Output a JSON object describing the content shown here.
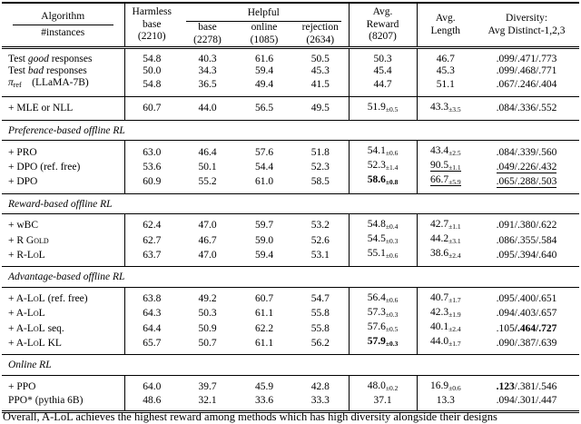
{
  "table": {
    "header": {
      "algorithm": "Algorithm",
      "instances": "#instances",
      "harmless": {
        "l1": "Harmless",
        "l2": "base",
        "l3": "(2210)"
      },
      "helpful": {
        "title": "Helpful",
        "subs": [
          {
            "l1": "base",
            "l2": "(2278)"
          },
          {
            "l1": "online",
            "l2": "(1085)"
          },
          {
            "l1": "rejection",
            "l2": "(2634)"
          }
        ]
      },
      "reward": {
        "l1": "Avg.",
        "l2": "Reward",
        "l3": "(8207)"
      },
      "length": {
        "l1": "Avg.",
        "l2": "Length"
      },
      "diversity": {
        "l1": "Diversity:",
        "l2": "Avg Distinct-1,2,3"
      }
    },
    "groups": [
      {
        "title": null,
        "rows": [
          {
            "label": [
              {
                "t": "Test "
              },
              {
                "t": "good",
                "i": true
              },
              {
                "t": " responses"
              }
            ],
            "vals": [
              "54.8",
              "40.3",
              "61.6",
              "50.5"
            ],
            "reward": {
              "v": "50.3"
            },
            "length": {
              "v": "46.7"
            },
            "div": {
              "p": [
                ".099",
                ".471",
                ".773"
              ]
            }
          },
          {
            "label": [
              {
                "t": "Test "
              },
              {
                "t": "bad",
                "i": true
              },
              {
                "t": " responses"
              }
            ],
            "vals": [
              "50.0",
              "34.3",
              "59.4",
              "45.3"
            ],
            "reward": {
              "v": "45.4"
            },
            "length": {
              "v": "45.3"
            },
            "div": {
              "p": [
                ".099",
                ".468",
                ".771"
              ]
            }
          },
          {
            "label": [
              {
                "t": "π",
                "i": true
              },
              {
                "t": "ref",
                "sub": true
              },
              {
                "t": "  (LLaMA-7B)"
              }
            ],
            "vals": [
              "54.8",
              "36.5",
              "49.4",
              "41.5"
            ],
            "reward": {
              "v": "44.7"
            },
            "length": {
              "v": "51.1"
            },
            "div": {
              "p": [
                ".067",
                ".246",
                ".404"
              ]
            }
          }
        ]
      },
      {
        "title": null,
        "rows": [
          {
            "label": [
              {
                "t": "+ MLE or NLL"
              }
            ],
            "vals": [
              "60.7",
              "44.0",
              "56.5",
              "49.5"
            ],
            "reward": {
              "v": "51.9",
              "s": "0.5"
            },
            "length": {
              "v": "43.3",
              "s": "3.5"
            },
            "div": {
              "p": [
                ".084",
                ".336",
                ".552"
              ]
            }
          }
        ]
      },
      {
        "title": "Preference-based offline RL",
        "rows": [
          {
            "label": [
              {
                "t": "+ PRO"
              }
            ],
            "vals": [
              "63.0",
              "46.4",
              "57.6",
              "51.8"
            ],
            "reward": {
              "v": "54.1",
              "s": "0.6"
            },
            "length": {
              "v": "43.4",
              "s": "2.5"
            },
            "div": {
              "p": [
                ".084",
                ".339",
                ".560"
              ]
            }
          },
          {
            "label": [
              {
                "t": "+ DPO (ref. free)"
              }
            ],
            "vals": [
              "53.6",
              "50.1",
              "54.4",
              "52.3"
            ],
            "reward": {
              "v": "52.3",
              "s": "1.4"
            },
            "length": {
              "v": "90.5",
              "s": "1.1",
              "u": true
            },
            "div": {
              "p": [
                ".049",
                ".226",
                ".432"
              ],
              "u": true
            }
          },
          {
            "label": [
              {
                "t": "+ DPO"
              }
            ],
            "vals": [
              "60.9",
              "55.2",
              "61.0",
              "58.5"
            ],
            "reward": {
              "v": "58.6",
              "s": "0.8",
              "b": true
            },
            "length": {
              "v": "66.7",
              "s": "5.9",
              "u": true
            },
            "div": {
              "p": [
                ".065",
                ".288",
                ".503"
              ],
              "u": true
            }
          }
        ]
      },
      {
        "title": "Reward-based offline RL",
        "rows": [
          {
            "label": [
              {
                "t": "+ wBC"
              }
            ],
            "vals": [
              "62.4",
              "47.0",
              "59.7",
              "53.2"
            ],
            "reward": {
              "v": "54.8",
              "s": "0.4"
            },
            "length": {
              "v": "42.7",
              "s": "1.1"
            },
            "div": {
              "p": [
                ".091",
                ".380",
                ".622"
              ]
            }
          },
          {
            "label": [
              {
                "t": "+ R "
              },
              {
                "t": "Gold",
                "sc": true
              }
            ],
            "vals": [
              "62.7",
              "46.7",
              "59.0",
              "52.6"
            ],
            "reward": {
              "v": "54.5",
              "s": "0.3"
            },
            "length": {
              "v": "44.2",
              "s": "3.1"
            },
            "div": {
              "p": [
                ".086",
                ".355",
                ".584"
              ]
            }
          },
          {
            "label": [
              {
                "t": "+ R-"
              },
              {
                "t": "LoL",
                "sc": true
              }
            ],
            "vals": [
              "63.7",
              "47.0",
              "59.4",
              "53.1"
            ],
            "reward": {
              "v": "55.1",
              "s": "0.6"
            },
            "length": {
              "v": "38.6",
              "s": "2.4"
            },
            "div": {
              "p": [
                ".095",
                ".394",
                ".640"
              ]
            }
          }
        ]
      },
      {
        "title": "Advantage-based offline RL",
        "rows": [
          {
            "label": [
              {
                "t": "+ A-"
              },
              {
                "t": "LoL",
                "sc": true
              },
              {
                "t": " (ref. free)"
              }
            ],
            "vals": [
              "63.8",
              "49.2",
              "60.7",
              "54.7"
            ],
            "reward": {
              "v": "56.4",
              "s": "0.6"
            },
            "length": {
              "v": "40.7",
              "s": "1.7"
            },
            "div": {
              "p": [
                ".095",
                ".400",
                ".651"
              ]
            }
          },
          {
            "label": [
              {
                "t": "+ A-"
              },
              {
                "t": "LoL",
                "sc": true
              }
            ],
            "vals": [
              "64.3",
              "50.3",
              "61.1",
              "55.8"
            ],
            "reward": {
              "v": "57.3",
              "s": "0.3"
            },
            "length": {
              "v": "42.3",
              "s": "1.9"
            },
            "div": {
              "p": [
                ".094",
                ".403",
                ".657"
              ]
            }
          },
          {
            "label": [
              {
                "t": "+ A-"
              },
              {
                "t": "LoL",
                "sc": true
              },
              {
                "t": " seq."
              }
            ],
            "vals": [
              "64.4",
              "50.9",
              "62.2",
              "55.8"
            ],
            "reward": {
              "v": "57.6",
              "s": "0.5"
            },
            "length": {
              "v": "40.1",
              "s": "2.4"
            },
            "div": {
              "p": [
                ".105",
                ".464",
                ".727"
              ],
              "bold": [
                false,
                true,
                true
              ]
            }
          },
          {
            "label": [
              {
                "t": "+ A-"
              },
              {
                "t": "LoL",
                "sc": true
              },
              {
                "t": " KL"
              }
            ],
            "vals": [
              "65.7",
              "50.7",
              "61.1",
              "56.2"
            ],
            "reward": {
              "v": "57.9",
              "s": "0.3",
              "b": true
            },
            "length": {
              "v": "44.0",
              "s": "1.7"
            },
            "div": {
              "p": [
                ".090",
                ".387",
                ".639"
              ]
            }
          }
        ]
      },
      {
        "title": "Online RL",
        "rows": [
          {
            "label": [
              {
                "t": "+ PPO"
              }
            ],
            "vals": [
              "64.0",
              "39.7",
              "45.9",
              "42.8"
            ],
            "reward": {
              "v": "48.0",
              "s": "0.2"
            },
            "length": {
              "v": "16.9",
              "s": "0.6"
            },
            "div": {
              "p": [
                ".123",
                ".381",
                ".546"
              ],
              "bold": [
                true,
                false,
                false
              ]
            }
          },
          {
            "label": [
              {
                "t": "PPO* (pythia 6B)"
              }
            ],
            "vals": [
              "48.6",
              "32.1",
              "33.6",
              "33.3"
            ],
            "reward": {
              "v": "37.1"
            },
            "length": {
              "v": "13.3"
            },
            "div": {
              "p": [
                ".094",
                ".301",
                ".447"
              ]
            }
          }
        ]
      }
    ]
  },
  "caption": {
    "text": "Overall, A-LoL achieves the highest reward among methods which has high diversity alongside their designs"
  }
}
